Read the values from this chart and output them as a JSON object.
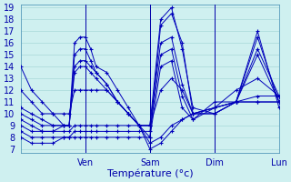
{
  "xlabel": "Température (°c)",
  "background_color": "#cff0f0",
  "grid_color": "#a8d8d8",
  "line_color": "#0000bb",
  "ylim": [
    7,
    19
  ],
  "yticks": [
    7,
    8,
    9,
    10,
    11,
    12,
    13,
    14,
    15,
    16,
    17,
    18,
    19
  ],
  "xlim_min": 0,
  "xlim_max": 96,
  "xtick_positions": [
    24,
    48,
    72,
    96
  ],
  "xtick_labels": [
    "Ven",
    "Sam",
    "Dim",
    "Lun"
  ],
  "lines": [
    [
      0,
      14,
      4,
      12,
      8,
      11,
      12,
      10,
      16,
      9,
      18,
      9,
      20,
      16,
      22,
      16.5,
      24,
      16.5,
      26,
      15.5,
      28,
      14,
      32,
      13.5,
      36,
      12,
      40,
      10.5,
      44,
      9,
      48,
      7,
      52,
      7.5,
      56,
      8.5,
      60,
      9.5,
      64,
      10,
      72,
      10,
      80,
      11,
      88,
      11,
      96,
      11
    ],
    [
      0,
      10.5,
      4,
      10,
      8,
      9.5,
      12,
      9,
      16,
      9,
      18,
      9,
      20,
      15,
      22,
      15.5,
      24,
      15.5,
      26,
      14.5,
      28,
      13.5,
      32,
      12.5,
      36,
      11,
      40,
      10,
      44,
      9,
      48,
      7.5,
      52,
      8,
      56,
      9,
      60,
      9.5,
      64,
      10,
      72,
      10.5,
      80,
      11,
      88,
      11,
      96,
      11
    ],
    [
      0,
      10,
      4,
      9.5,
      8,
      9,
      12,
      9,
      16,
      9,
      18,
      9,
      20,
      14,
      22,
      14.5,
      24,
      14.5,
      26,
      14,
      28,
      13.5,
      32,
      12.5,
      36,
      11,
      40,
      10,
      44,
      9,
      48,
      9,
      52,
      18,
      56,
      19,
      60,
      15.5,
      64,
      10.5,
      72,
      10,
      80,
      11,
      88,
      11.5,
      96,
      11.5
    ],
    [
      0,
      9.5,
      4,
      9,
      8,
      8.5,
      12,
      8.5,
      16,
      9,
      18,
      9,
      20,
      13.5,
      22,
      14,
      24,
      14,
      26,
      13.5,
      28,
      13,
      32,
      12,
      36,
      11,
      40,
      10,
      44,
      9,
      48,
      8,
      52,
      17.5,
      56,
      18.5,
      60,
      16,
      64,
      10,
      72,
      10.5,
      80,
      12,
      88,
      13,
      96,
      11.5
    ],
    [
      0,
      9,
      4,
      8.5,
      8,
      8.5,
      12,
      8.5,
      16,
      8.5,
      18,
      8.5,
      20,
      9,
      22,
      9,
      24,
      9,
      26,
      9,
      28,
      9,
      32,
      9,
      36,
      9,
      40,
      9,
      44,
      9,
      48,
      9,
      52,
      16,
      56,
      16.5,
      60,
      12.5,
      64,
      10,
      72,
      10,
      80,
      11,
      88,
      15,
      96,
      11
    ],
    [
      0,
      8.5,
      4,
      8,
      8,
      8,
      12,
      8,
      16,
      8,
      18,
      8,
      20,
      8.5,
      22,
      8.5,
      24,
      8.5,
      26,
      8.5,
      28,
      8.5,
      32,
      8.5,
      36,
      8.5,
      40,
      8.5,
      44,
      8.5,
      48,
      8.5,
      52,
      15,
      56,
      15.5,
      60,
      11.5,
      64,
      9.5,
      72,
      10.5,
      80,
      11,
      88,
      16.5,
      96,
      11
    ],
    [
      0,
      8,
      4,
      7.5,
      8,
      7.5,
      12,
      7.5,
      16,
      8,
      18,
      8,
      20,
      8,
      22,
      8,
      24,
      8,
      26,
      8,
      28,
      8,
      32,
      8,
      36,
      8,
      40,
      8,
      44,
      8,
      48,
      8,
      52,
      14,
      56,
      14.5,
      60,
      10.5,
      64,
      9.5,
      72,
      11,
      80,
      11,
      88,
      17,
      96,
      10.5
    ],
    [
      0,
      12,
      4,
      11,
      8,
      10,
      12,
      10,
      16,
      10,
      18,
      10,
      20,
      12,
      22,
      12,
      24,
      12,
      26,
      12,
      28,
      12,
      32,
      12,
      36,
      11,
      40,
      10,
      44,
      9,
      48,
      9,
      52,
      12,
      56,
      13,
      60,
      12,
      64,
      10,
      72,
      10.5,
      80,
      11,
      88,
      15.5,
      96,
      11.5
    ]
  ]
}
